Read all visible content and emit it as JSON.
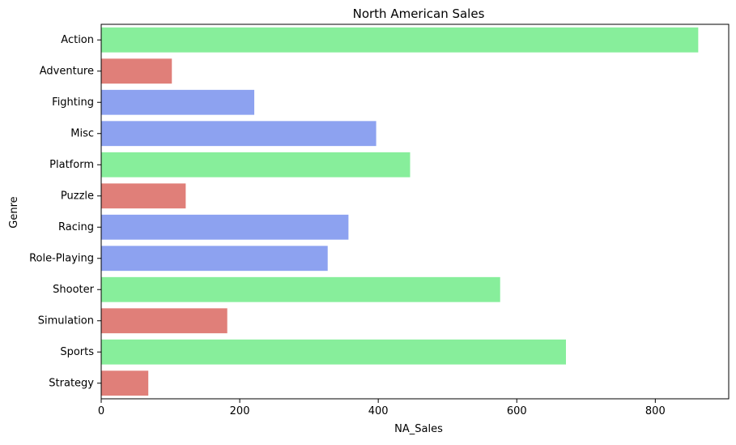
{
  "chart_data": {
    "type": "bar",
    "orientation": "horizontal",
    "title": "North American Sales",
    "xlabel": "NA_Sales",
    "ylabel": "Genre",
    "xlim": [
      0,
      906
    ],
    "xticks": [
      0,
      200,
      400,
      600,
      800
    ],
    "grid": false,
    "categories": [
      "Action",
      "Adventure",
      "Fighting",
      "Misc",
      "Platform",
      "Puzzle",
      "Racing",
      "Role-Playing",
      "Shooter",
      "Simulation",
      "Sports",
      "Strategy"
    ],
    "values": [
      862,
      102,
      221,
      397,
      446,
      122,
      357,
      327,
      576,
      182,
      671,
      68
    ],
    "bar_colors": [
      "#87ee9b",
      "#e07f79",
      "#8da2f0",
      "#8da2f0",
      "#87ee9b",
      "#e07f79",
      "#8da2f0",
      "#8da2f0",
      "#87ee9b",
      "#e07f79",
      "#87ee9b",
      "#e07f79"
    ]
  }
}
